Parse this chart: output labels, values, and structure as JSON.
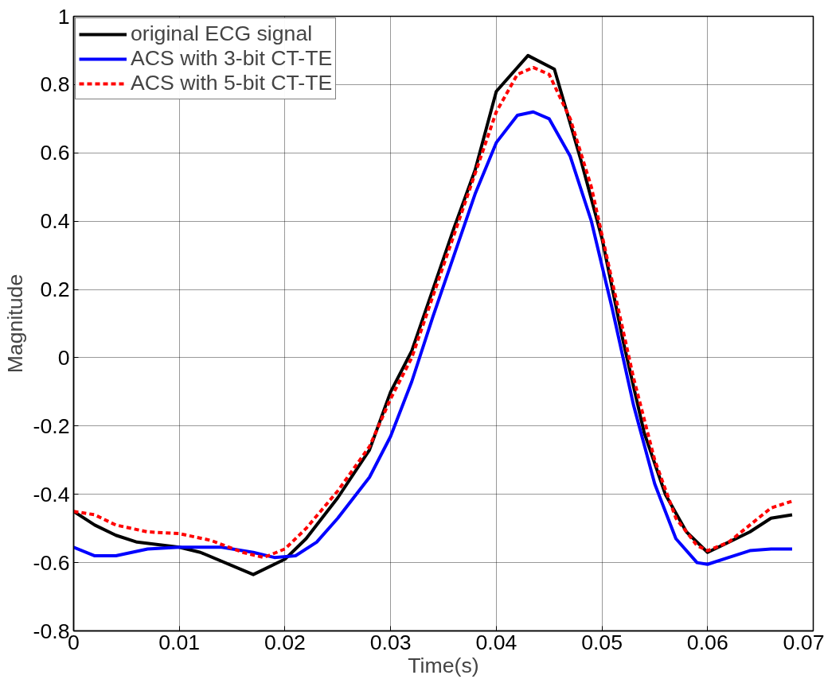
{
  "chart_data": {
    "type": "line",
    "xlabel": "Time(s)",
    "ylabel": "Magnitude",
    "xlim": [
      0,
      0.07
    ],
    "xticks": [
      0,
      0.01,
      0.02,
      0.03,
      0.04,
      0.05,
      0.06,
      0.07
    ],
    "ylim": [
      -0.8,
      1
    ],
    "yticks": [
      -0.8,
      -0.6,
      -0.4,
      -0.2,
      0,
      0.2,
      0.4,
      0.6,
      0.8,
      1
    ],
    "grid": true,
    "legend": "top left",
    "series": [
      {
        "name": "original ECG signal",
        "color": "#000000",
        "line_style": "solid",
        "x": [
          0,
          0.002,
          0.004,
          0.006,
          0.01,
          0.012,
          0.017,
          0.02,
          0.022,
          0.025,
          0.028,
          0.03,
          0.032,
          0.034,
          0.036,
          0.038,
          0.04,
          0.043,
          0.0455,
          0.048,
          0.05,
          0.052,
          0.054,
          0.056,
          0.058,
          0.06,
          0.062,
          0.064,
          0.066,
          0.068
        ],
        "values": [
          -0.45,
          -0.49,
          -0.52,
          -0.54,
          -0.555,
          -0.57,
          -0.635,
          -0.59,
          -0.53,
          -0.41,
          -0.27,
          -0.1,
          0.02,
          0.2,
          0.38,
          0.55,
          0.78,
          0.885,
          0.845,
          0.58,
          0.35,
          0.05,
          -0.22,
          -0.4,
          -0.51,
          -0.57,
          -0.54,
          -0.51,
          -0.47,
          -0.46
        ]
      },
      {
        "name": "ACS with 3-bit CT-TE",
        "color": "#0000ff",
        "line_style": "solid",
        "x": [
          0,
          0.002,
          0.004,
          0.007,
          0.01,
          0.014,
          0.017,
          0.019,
          0.021,
          0.023,
          0.025,
          0.028,
          0.03,
          0.032,
          0.034,
          0.036,
          0.038,
          0.04,
          0.042,
          0.0435,
          0.045,
          0.047,
          0.049,
          0.051,
          0.053,
          0.055,
          0.057,
          0.059,
          0.06,
          0.062,
          0.064,
          0.066,
          0.068
        ],
        "values": [
          -0.555,
          -0.58,
          -0.58,
          -0.56,
          -0.555,
          -0.555,
          -0.57,
          -0.585,
          -0.58,
          -0.54,
          -0.47,
          -0.35,
          -0.23,
          -0.07,
          0.12,
          0.3,
          0.48,
          0.63,
          0.71,
          0.72,
          0.7,
          0.59,
          0.4,
          0.14,
          -0.14,
          -0.37,
          -0.53,
          -0.6,
          -0.605,
          -0.585,
          -0.565,
          -0.56,
          -0.56
        ]
      },
      {
        "name": "ACS with 5-bit CT-TE",
        "color": "#ff0000",
        "line_style": "dashed",
        "x": [
          0,
          0.002,
          0.004,
          0.007,
          0.01,
          0.013,
          0.016,
          0.018,
          0.02,
          0.022,
          0.025,
          0.028,
          0.03,
          0.032,
          0.034,
          0.036,
          0.038,
          0.04,
          0.042,
          0.0435,
          0.045,
          0.047,
          0.049,
          0.051,
          0.053,
          0.055,
          0.057,
          0.059,
          0.06,
          0.062,
          0.064,
          0.066,
          0.068
        ],
        "values": [
          -0.45,
          -0.46,
          -0.49,
          -0.51,
          -0.515,
          -0.535,
          -0.57,
          -0.585,
          -0.56,
          -0.5,
          -0.39,
          -0.26,
          -0.12,
          0.0,
          0.18,
          0.36,
          0.54,
          0.72,
          0.83,
          0.85,
          0.83,
          0.7,
          0.5,
          0.22,
          -0.06,
          -0.3,
          -0.47,
          -0.55,
          -0.565,
          -0.54,
          -0.49,
          -0.44,
          -0.42
        ]
      }
    ]
  }
}
